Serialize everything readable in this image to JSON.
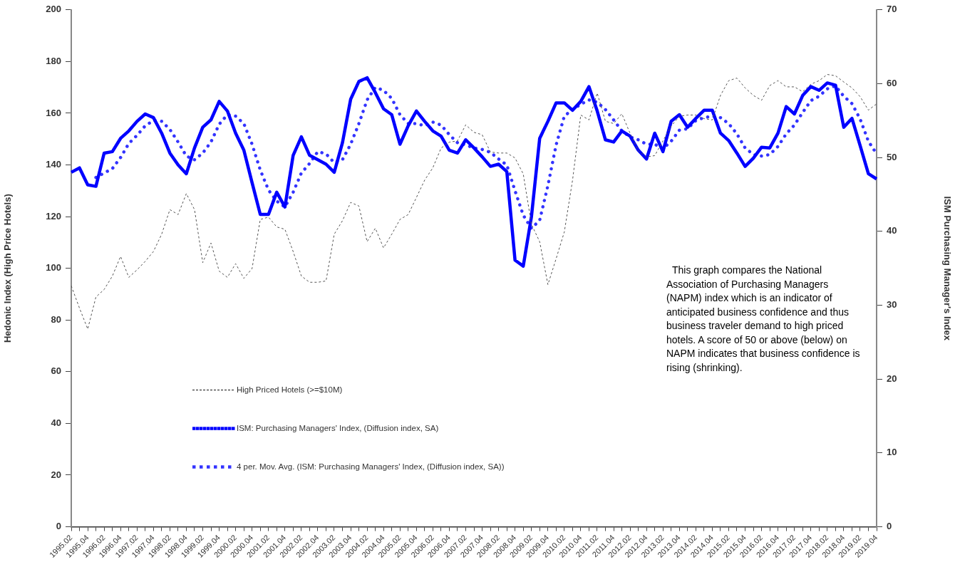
{
  "chart_data": {
    "type": "line",
    "ylabel": "Hedonic Index (High Price Hotels)",
    "y2label": "ISM Purchasing Manager's Index",
    "categories": [
      "1995.02",
      null,
      "1995.04",
      null,
      "1996.02",
      null,
      "1996.04",
      null,
      "1997.02",
      null,
      "1997.04",
      null,
      "1998.02",
      null,
      "1998.04",
      null,
      "1999.02",
      null,
      "1999.04",
      null,
      "2000.02",
      null,
      "2000.04",
      null,
      "2001.02",
      null,
      "2001.04",
      null,
      "2002.02",
      null,
      "2002.04",
      null,
      "2003.02",
      null,
      "2003.04",
      null,
      "2004.02",
      null,
      "2004.04",
      null,
      "2005.02",
      null,
      "2005.04",
      null,
      "2006.02",
      null,
      "2006.04",
      null,
      "2007.02",
      null,
      "2007.04",
      null,
      "2008.02",
      null,
      "2008.04",
      null,
      "2009.02",
      null,
      "2009.04",
      null,
      "2010.02",
      null,
      "2010.04",
      null,
      "2011.02",
      null,
      "2011.04",
      null,
      "2012.02",
      null,
      "2012.04",
      null,
      "2013.02",
      null,
      "2013.04",
      null,
      "2014.02",
      null,
      "2014.04",
      null,
      "2015.02",
      null,
      "2015.04",
      null,
      "2016.02",
      null,
      "2016.04",
      null,
      "2017.02",
      null,
      "2017.04",
      null,
      "2018.02",
      null,
      "2018.04",
      null,
      "2019.02",
      null,
      "2019.04"
    ],
    "series": [
      {
        "name": "High Priced Hotels (>=$10M)",
        "color": "#555555",
        "line_style": "dashed",
        "values": [
          93.2,
          84.6,
          76.5,
          88.9,
          91.8,
          97.0,
          104.6,
          96.5,
          99.4,
          102.7,
          106.5,
          113.2,
          122.7,
          120.8,
          128.9,
          122.7,
          102.2,
          109.8,
          98.9,
          96.5,
          101.8,
          96.1,
          99.9,
          118.9,
          119.8,
          116.0,
          115.1,
          106.5,
          97.0,
          94.6,
          94.6,
          95.1,
          113.2,
          118.4,
          125.5,
          124.1,
          110.3,
          115.5,
          107.9,
          113.2,
          118.9,
          120.8,
          127.4,
          134.1,
          138.9,
          146.5,
          148.8,
          149.3,
          155.5,
          152.6,
          151.7,
          145.0,
          144.6,
          144.6,
          142.7,
          136.5,
          117.0,
          110.3,
          93.7,
          103.7,
          114.1,
          134.1,
          159.3,
          157.4,
          167.8,
          156.9,
          156.0,
          159.8,
          152.2,
          145.5,
          143.1,
          143.6,
          149.3,
          155.0,
          158.8,
          159.3,
          159.3,
          157.9,
          157.4,
          166.9,
          172.6,
          173.6,
          169.8,
          166.9,
          165.0,
          170.7,
          172.6,
          170.2,
          170.2,
          168.3,
          171.2,
          172.6,
          175.0,
          174.5,
          172.1,
          169.8,
          166.4,
          161.2,
          163.6
        ]
      },
      {
        "name": "ISM: Purchasing Managers' Index, (Diffusion index, SA)",
        "color": "#0000ff",
        "line_style": "solid",
        "axis": "y2",
        "values": [
          48.0,
          48.6,
          46.3,
          46.1,
          50.6,
          50.8,
          52.6,
          53.6,
          54.9,
          55.9,
          55.4,
          53.3,
          50.6,
          49.0,
          47.8,
          51.3,
          54.1,
          55.1,
          57.6,
          56.3,
          53.3,
          51.0,
          46.6,
          42.3,
          42.3,
          45.3,
          43.3,
          50.3,
          52.8,
          50.3,
          49.7,
          49.1,
          48.0,
          52.0,
          57.9,
          60.3,
          60.8,
          58.8,
          56.6,
          55.8,
          51.8,
          54.3,
          56.3,
          54.9,
          53.6,
          52.9,
          51.0,
          50.6,
          52.4,
          51.3,
          50.1,
          48.8,
          49.1,
          48.1,
          36.1,
          35.3,
          42.0,
          52.6,
          54.9,
          57.4,
          57.4,
          56.4,
          57.6,
          59.6,
          56.3,
          52.4,
          52.1,
          53.6,
          52.9,
          51.0,
          49.8,
          53.3,
          50.8,
          54.9,
          55.8,
          54.1,
          55.3,
          56.4,
          56.4,
          53.3,
          52.3,
          50.6,
          48.8,
          49.9,
          51.4,
          51.3,
          53.3,
          56.9,
          55.9,
          58.4,
          59.6,
          59.1,
          60.1,
          59.8,
          54.1,
          55.3,
          51.6,
          47.8,
          47.1
        ]
      },
      {
        "name": "4 per. Mov. Avg. (ISM: Purchasing Managers' Index, (Diffusion index, SA))",
        "color": "#3333ff",
        "line_style": "dotted",
        "axis": "y2",
        "values": [
          null,
          null,
          null,
          47.3,
          47.9,
          48.5,
          50.0,
          51.9,
          53.0,
          54.3,
          55.0,
          54.9,
          53.8,
          52.1,
          50.2,
          49.7,
          50.6,
          52.1,
          54.5,
          55.8,
          55.6,
          54.6,
          51.8,
          48.3,
          45.6,
          44.1,
          43.3,
          45.3,
          47.9,
          49.2,
          50.8,
          50.5,
          49.3,
          49.7,
          51.8,
          54.6,
          57.8,
          59.5,
          59.1,
          58.0,
          55.8,
          54.6,
          54.6,
          54.3,
          54.8,
          54.4,
          53.1,
          52.0,
          51.7,
          51.3,
          51.1,
          50.7,
          49.8,
          49.0,
          45.5,
          42.2,
          40.4,
          41.5,
          46.2,
          51.7,
          55.6,
          56.5,
          57.2,
          57.8,
          57.5,
          56.5,
          55.1,
          53.6,
          52.8,
          52.4,
          51.8,
          51.8,
          51.2,
          52.2,
          53.7,
          53.9,
          55.0,
          55.4,
          55.6,
          55.4,
          54.6,
          53.2,
          51.3,
          50.4,
          50.2,
          50.4,
          51.5,
          53.2,
          54.4,
          56.1,
          57.7,
          58.3,
          59.3,
          59.7,
          58.3,
          57.3,
          55.2,
          52.2,
          50.5
        ]
      }
    ],
    "ylim": [
      0,
      200
    ],
    "yticks": [
      0,
      20,
      40,
      60,
      80,
      100,
      120,
      140,
      160,
      180,
      200
    ],
    "y2lim": [
      0,
      70
    ],
    "y2ticks": [
      0,
      10,
      20,
      30,
      40,
      50,
      60,
      70
    ],
    "grid": false,
    "legend": "bottom left",
    "marker": "none",
    "annotations": [
      "This graph compares the National Association of Purchasing Managers (NAPM) index which is an indicator of anticipated business confidence and thus business traveler demand to high priced hotels. A score of 50 or above (below) on NAPM indicates that business confidence is rising (shrinking)."
    ]
  }
}
